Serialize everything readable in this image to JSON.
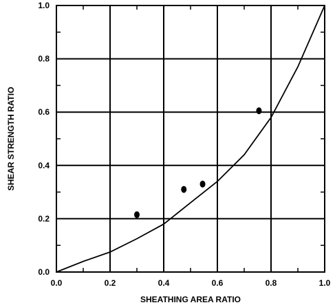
{
  "chart_data": {
    "type": "scatter",
    "title": "",
    "xlabel": "SHEATHING AREA RATIO",
    "ylabel": "SHEAR STRENGTH RATIO",
    "xlim": [
      0,
      1
    ],
    "ylim": [
      0,
      1
    ],
    "x_ticks": [
      "0.0",
      "0.2",
      "0.4",
      "0.6",
      "0.8",
      "1.0"
    ],
    "y_ticks": [
      "0.0",
      "0.2",
      "0.4",
      "0.6",
      "0.8",
      "1.0"
    ],
    "grid": true,
    "series": [
      {
        "type": "scatter",
        "points": [
          {
            "x": 0.3,
            "y": 0.215
          },
          {
            "x": 0.475,
            "y": 0.31
          },
          {
            "x": 0.545,
            "y": 0.33
          },
          {
            "x": 0.755,
            "y": 0.605
          }
        ]
      },
      {
        "type": "line",
        "points": [
          {
            "x": 0.0,
            "y": 0.0
          },
          {
            "x": 0.1,
            "y": 0.04
          },
          {
            "x": 0.2,
            "y": 0.075
          },
          {
            "x": 0.3,
            "y": 0.125
          },
          {
            "x": 0.4,
            "y": 0.18
          },
          {
            "x": 0.5,
            "y": 0.26
          },
          {
            "x": 0.6,
            "y": 0.34
          },
          {
            "x": 0.7,
            "y": 0.44
          },
          {
            "x": 0.8,
            "y": 0.58
          },
          {
            "x": 0.9,
            "y": 0.77
          },
          {
            "x": 1.0,
            "y": 1.0
          }
        ]
      }
    ],
    "colors": {
      "line": "#000000",
      "grid": "#000000",
      "points": "#000000"
    }
  }
}
